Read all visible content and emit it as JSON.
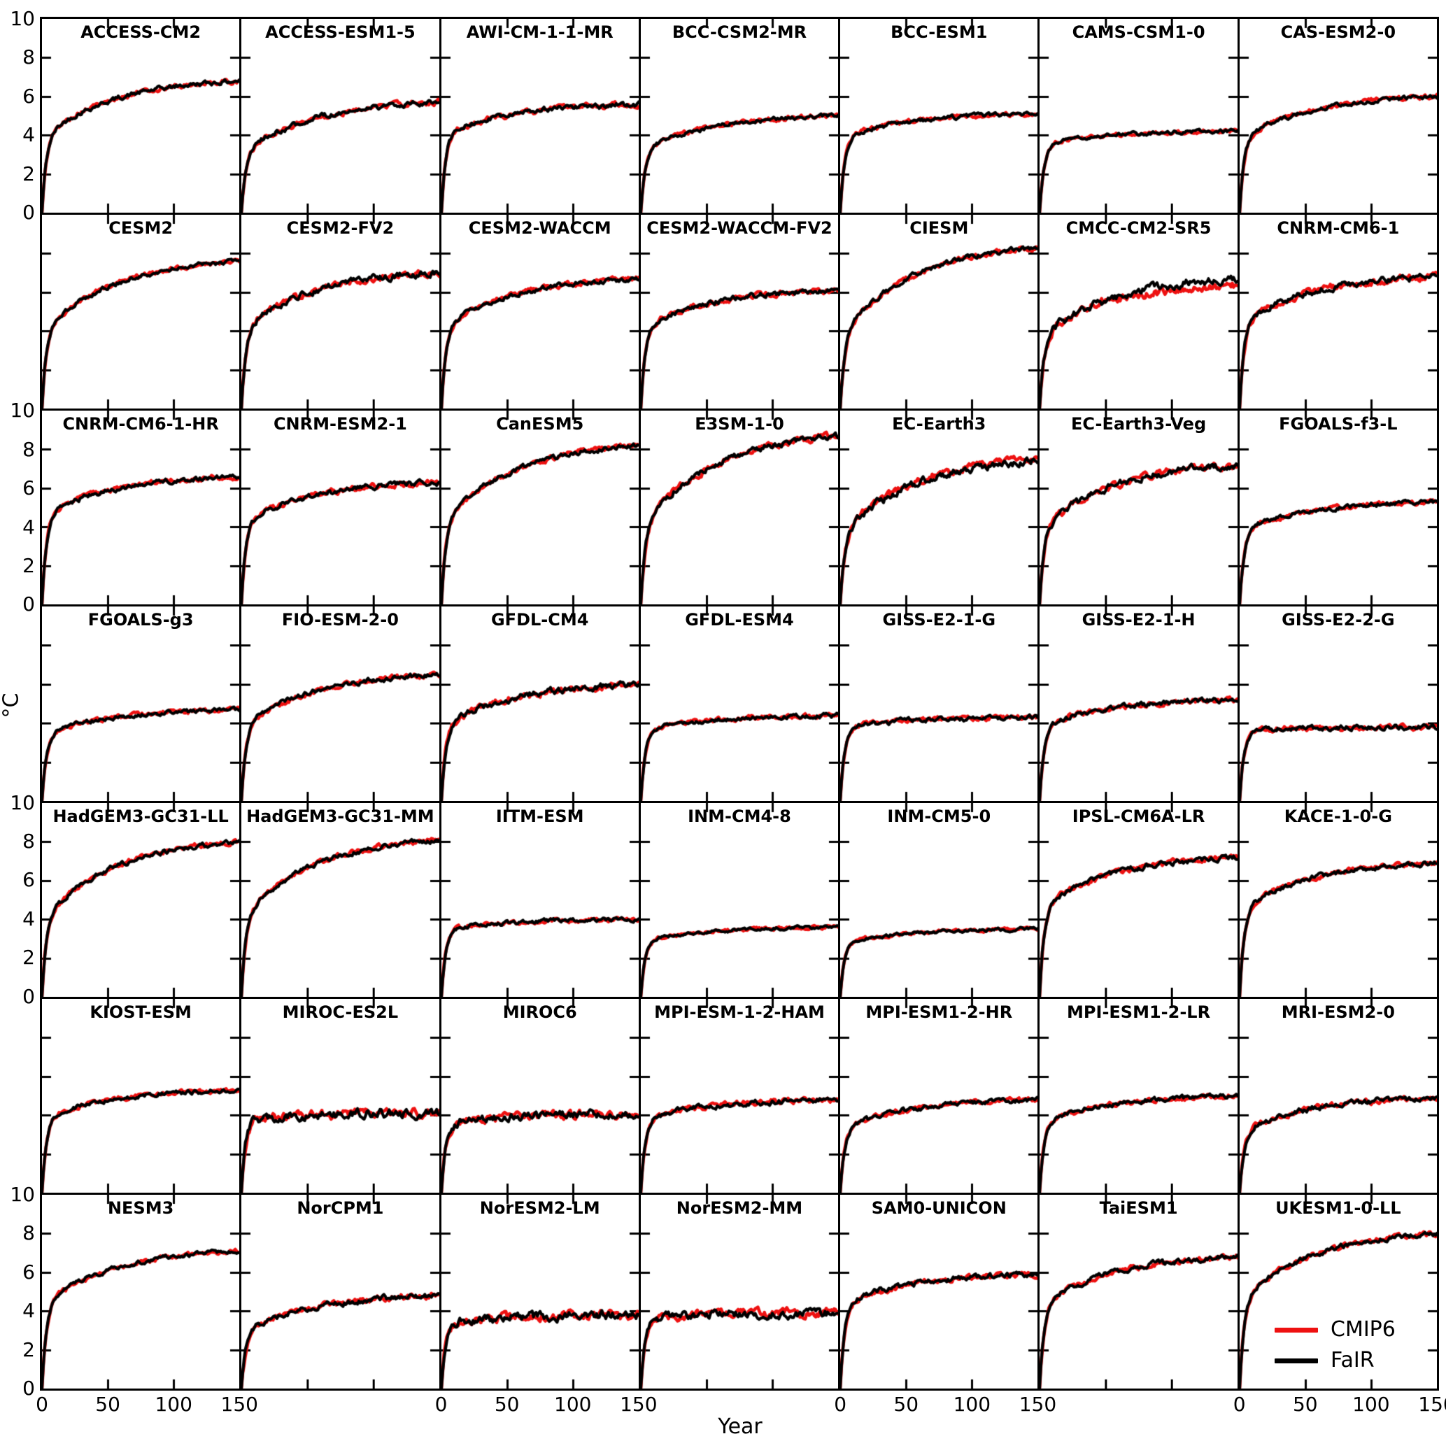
{
  "figure": {
    "xlabel": "Year",
    "ylabel": "°C"
  },
  "chart_data": {
    "type": "line",
    "grid": {
      "rows": 7,
      "cols": 7
    },
    "x": {
      "label": "Year",
      "range": [
        0,
        150
      ],
      "ticks": [
        0,
        50,
        100,
        150
      ],
      "labeled_cols": [
        0,
        2,
        4,
        6
      ]
    },
    "y": {
      "label": "°C",
      "range": [
        0,
        10
      ],
      "ticks": [
        0,
        2,
        4,
        6,
        8,
        10
      ],
      "labeled_rows": [
        0,
        2,
        4,
        6
      ]
    },
    "legend_position": "lower right of last panel",
    "series": [
      {
        "name": "CMIP6",
        "color": "#ee1111"
      },
      {
        "name": "FaIR",
        "color": "#000000"
      }
    ],
    "curve_model": "abrupt-4xCO2 warming: y(t)=A*(1-exp(-t/3.3))+B*(1-exp(-t/55)); A,B fit from y10 (value at year 10) and y150 (value at year 150), plus small interannual noise",
    "panels": [
      {
        "title": "ACCESS-CM2",
        "y10": 4.2,
        "y150": 6.8,
        "noise": 0.09
      },
      {
        "title": "ACCESS-ESM1-5",
        "y10": 3.4,
        "y150": 5.7,
        "noise": 0.1
      },
      {
        "title": "AWI-CM-1-1-MR",
        "y10": 4.1,
        "y150": 5.6,
        "noise": 0.1
      },
      {
        "title": "BCC-CSM2-MR",
        "y10": 3.4,
        "y150": 5.0,
        "noise": 0.08
      },
      {
        "title": "BCC-ESM1",
        "y10": 3.9,
        "y150": 5.1,
        "noise": 0.08
      },
      {
        "title": "CAMS-CSM1-0",
        "y10": 3.5,
        "y150": 4.2,
        "noise": 0.07
      },
      {
        "title": "CAS-ESM2-0",
        "y10": 4.0,
        "y150": 6.0,
        "noise": 0.08
      },
      {
        "title": "CESM2",
        "y10": 4.4,
        "y150": 7.6,
        "noise": 0.08
      },
      {
        "title": "CESM2-FV2",
        "y10": 4.4,
        "y150": 7.0,
        "noise": 0.12
      },
      {
        "title": "CESM2-WACCM",
        "y10": 4.4,
        "y150": 6.7,
        "noise": 0.09
      },
      {
        "title": "CESM2-WACCM-FV2",
        "y10": 4.3,
        "y150": 6.1,
        "noise": 0.1
      },
      {
        "title": "CIESM",
        "y10": 4.4,
        "y150": 8.3,
        "noise": 0.09
      },
      {
        "title": "CMCC-CM2-SR5",
        "y10": 4.0,
        "y150": 6.7,
        "noise": 0.15,
        "red_bias": -0.35
      },
      {
        "title": "CNRM-CM6-1",
        "y10": 4.6,
        "y150": 6.8,
        "noise": 0.12
      },
      {
        "title": "CNRM-CM6-1-HR",
        "y10": 4.7,
        "y150": 6.6,
        "noise": 0.09
      },
      {
        "title": "CNRM-ESM2-1",
        "y10": 4.4,
        "y150": 6.3,
        "noise": 0.1
      },
      {
        "title": "CanESM5",
        "y10": 4.7,
        "y150": 8.2,
        "noise": 0.09
      },
      {
        "title": "E3SM-1-0",
        "y10": 4.6,
        "y150": 8.7,
        "noise": 0.12
      },
      {
        "title": "EC-Earth3",
        "y10": 4.1,
        "y150": 7.4,
        "noise": 0.14,
        "red_bias": 0.12
      },
      {
        "title": "EC-Earth3-Veg",
        "y10": 4.2,
        "y150": 7.2,
        "noise": 0.13
      },
      {
        "title": "FGOALS-f3-L",
        "y10": 3.9,
        "y150": 5.3,
        "noise": 0.08
      },
      {
        "title": "FGOALS-g3",
        "y10": 3.5,
        "y150": 4.7,
        "noise": 0.08
      },
      {
        "title": "FIO-ESM-2-0",
        "y10": 4.1,
        "y150": 6.5,
        "noise": 0.09
      },
      {
        "title": "GFDL-CM4",
        "y10": 4.0,
        "y150": 6.0,
        "noise": 0.12
      },
      {
        "title": "GFDL-ESM4",
        "y10": 3.6,
        "y150": 4.4,
        "noise": 0.08
      },
      {
        "title": "GISS-E2-1-G",
        "y10": 3.7,
        "y150": 4.3,
        "noise": 0.09
      },
      {
        "title": "GISS-E2-1-H",
        "y10": 3.9,
        "y150": 5.2,
        "noise": 0.09
      },
      {
        "title": "GISS-E2-2-G",
        "y10": 3.5,
        "y150": 3.8,
        "noise": 0.09
      },
      {
        "title": "HadGEM3-GC31-LL",
        "y10": 4.5,
        "y150": 8.0,
        "noise": 0.09
      },
      {
        "title": "HadGEM3-GC31-MM",
        "y10": 4.6,
        "y150": 8.1,
        "noise": 0.09
      },
      {
        "title": "IITM-ESM",
        "y10": 3.4,
        "y150": 4.0,
        "noise": 0.08
      },
      {
        "title": "INM-CM4-8",
        "y10": 2.9,
        "y150": 3.6,
        "noise": 0.06
      },
      {
        "title": "INM-CM5-0",
        "y10": 2.8,
        "y150": 3.5,
        "noise": 0.06
      },
      {
        "title": "IPSL-CM6A-LR",
        "y10": 4.8,
        "y150": 7.2,
        "noise": 0.1
      },
      {
        "title": "KACE-1-0-G",
        "y10": 4.7,
        "y150": 6.9,
        "noise": 0.09
      },
      {
        "title": "KIOST-ESM",
        "y10": 3.9,
        "y150": 5.3,
        "noise": 0.08
      },
      {
        "title": "MIROC-ES2L",
        "y10": 3.7,
        "y150": 4.1,
        "noise": 0.17
      },
      {
        "title": "MIROC6",
        "y10": 3.5,
        "y150": 4.1,
        "noise": 0.15
      },
      {
        "title": "MPI-ESM-1-2-HAM",
        "y10": 3.8,
        "y150": 4.8,
        "noise": 0.1
      },
      {
        "title": "MPI-ESM1-2-HR",
        "y10": 3.4,
        "y150": 4.8,
        "noise": 0.09
      },
      {
        "title": "MPI-ESM1-2-LR",
        "y10": 3.7,
        "y150": 5.0,
        "noise": 0.09
      },
      {
        "title": "MRI-ESM2-0",
        "y10": 3.3,
        "y150": 4.9,
        "noise": 0.1
      },
      {
        "title": "NESM3",
        "y10": 4.6,
        "y150": 7.1,
        "noise": 0.08
      },
      {
        "title": "NorCPM1",
        "y10": 3.1,
        "y150": 4.8,
        "noise": 0.11
      },
      {
        "title": "NorESM2-LM",
        "y10": 3.3,
        "y150": 3.8,
        "noise": 0.17
      },
      {
        "title": "NorESM2-MM",
        "y10": 3.5,
        "y150": 3.9,
        "noise": 0.16
      },
      {
        "title": "SAM0-UNICON",
        "y10": 4.4,
        "y150": 5.9,
        "noise": 0.1
      },
      {
        "title": "TaiESM1",
        "y10": 4.5,
        "y150": 6.8,
        "noise": 0.1
      },
      {
        "title": "UKESM1-0-LL",
        "y10": 4.9,
        "y150": 8.0,
        "noise": 0.09
      }
    ]
  }
}
